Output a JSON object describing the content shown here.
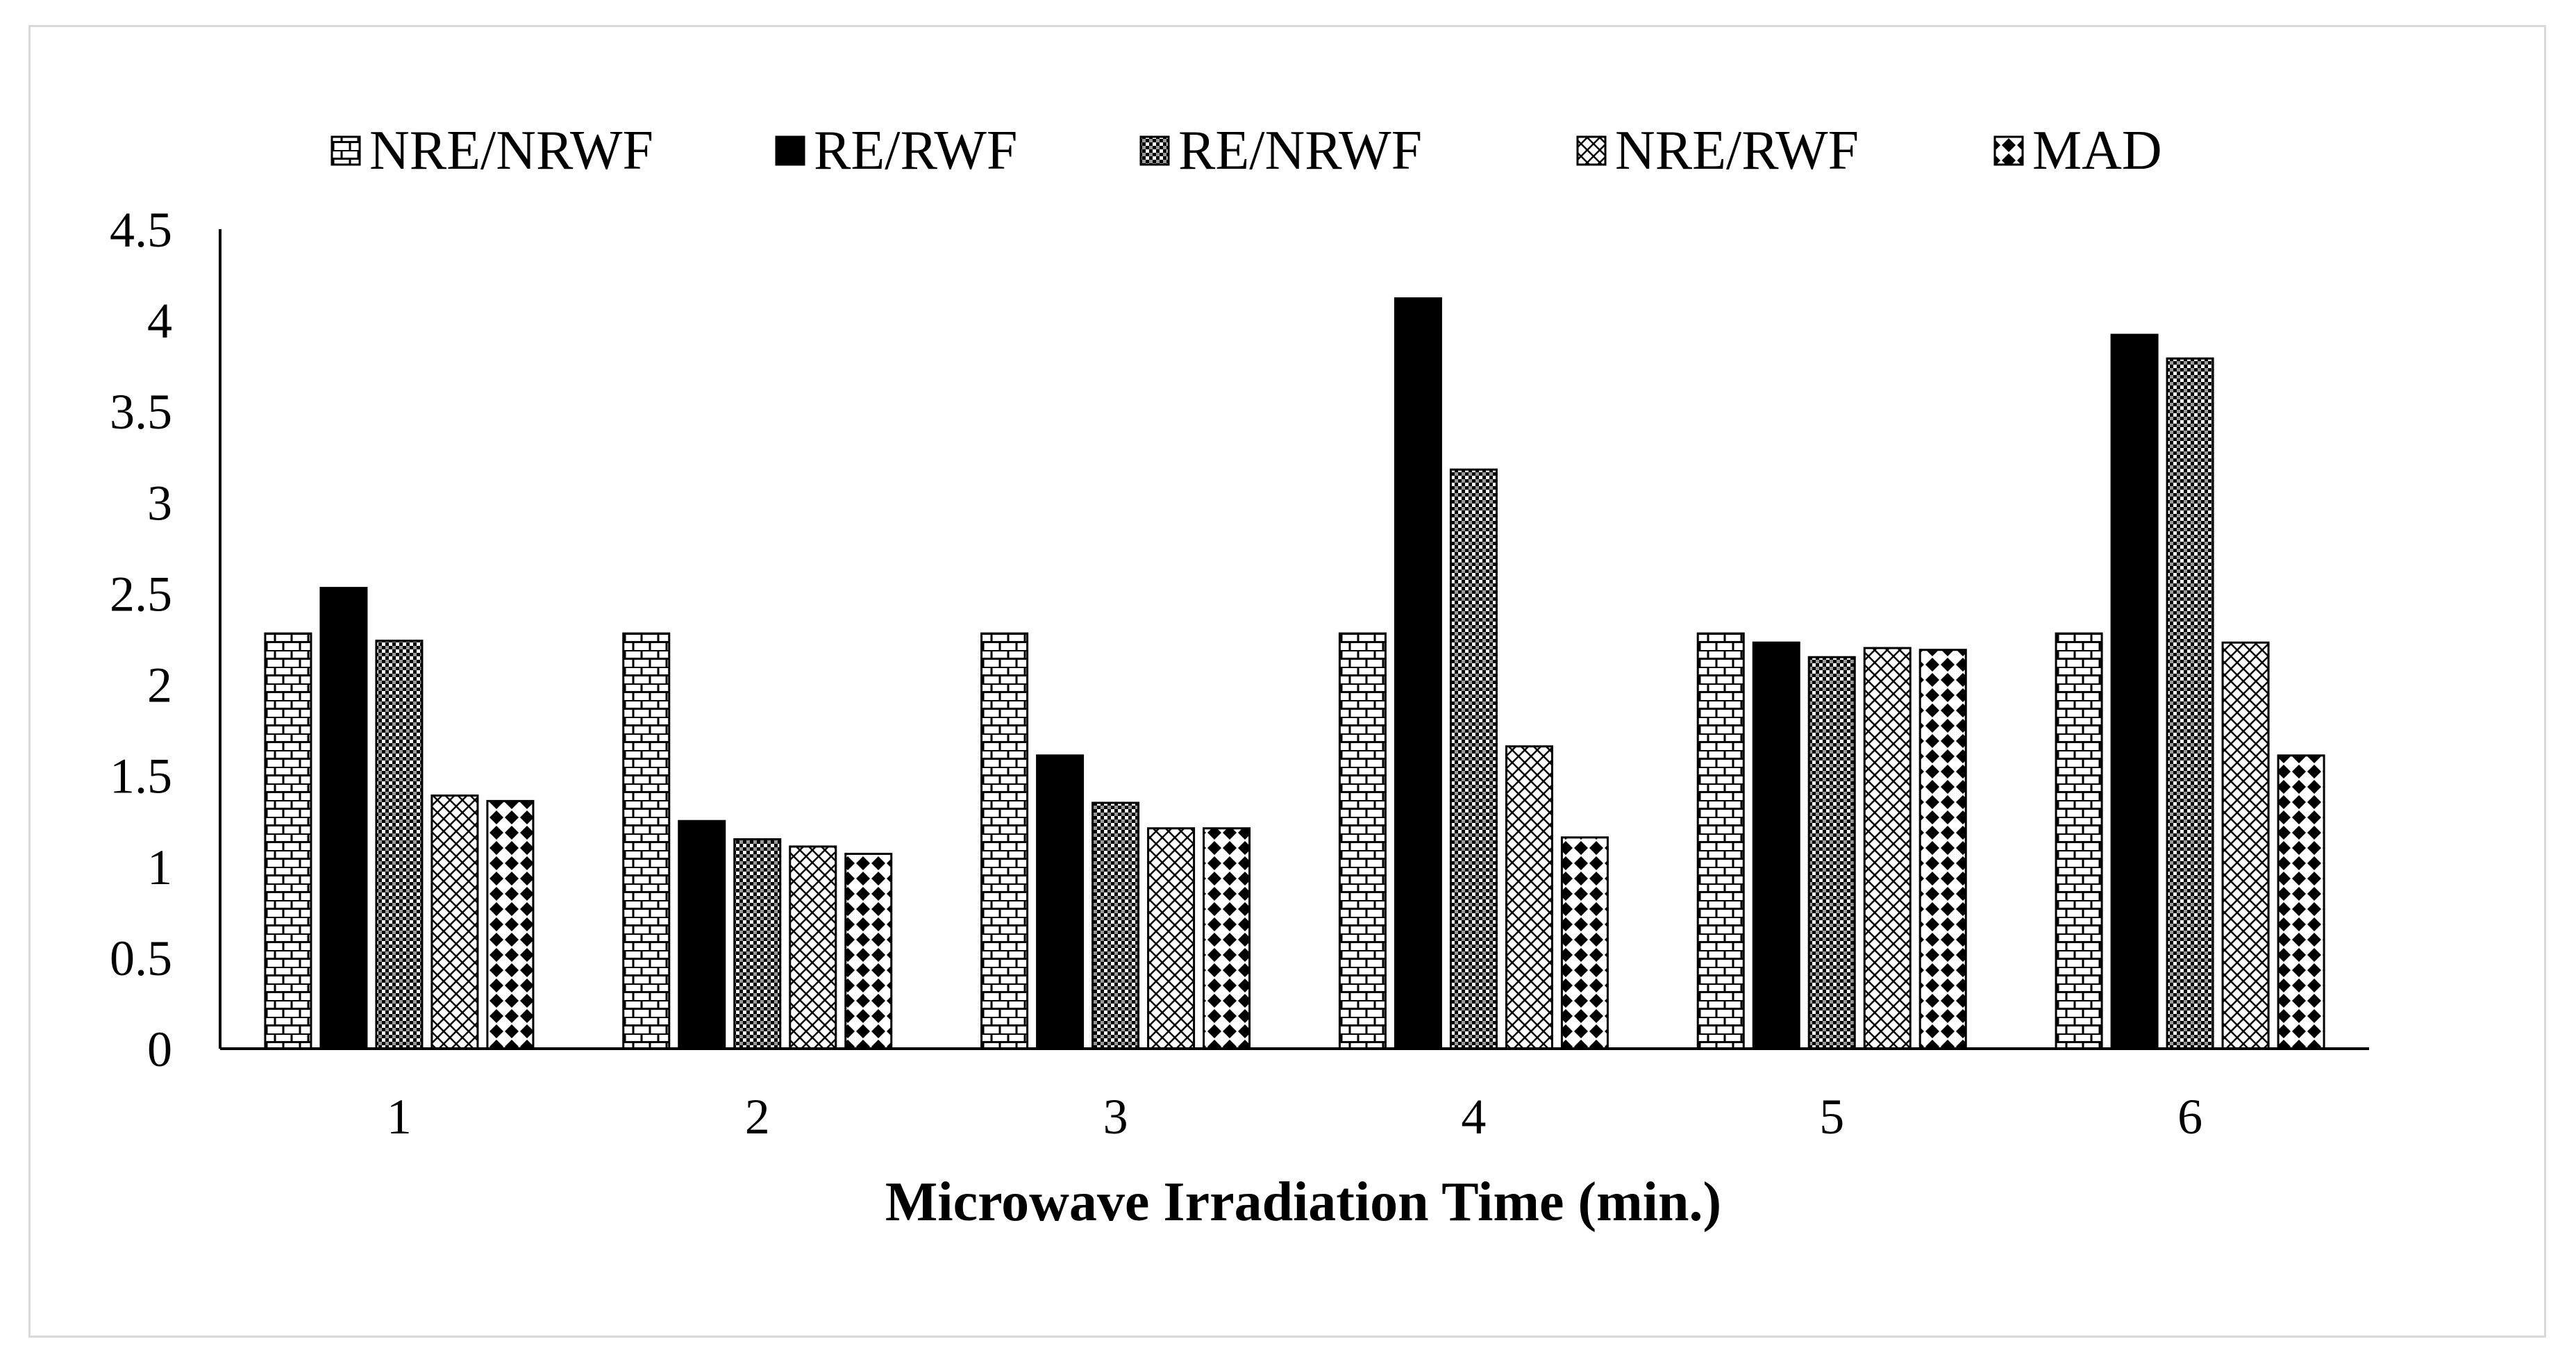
{
  "chart_data": {
    "type": "bar",
    "title": "",
    "xlabel": "Microwave Irradiation Time (min.)",
    "ylabel": "",
    "ylim": [
      0,
      4.5
    ],
    "yticks": [
      "0",
      "0.5",
      "1",
      "1.5",
      "2",
      "2.5",
      "3",
      "3.5",
      "4",
      "4.5"
    ],
    "categories": [
      "1",
      "2",
      "3",
      "4",
      "5",
      "6"
    ],
    "legend_position": "top",
    "series": [
      {
        "name": "NRE/NRWF",
        "pattern": "brick",
        "values": [
          2.28,
          2.28,
          2.28,
          2.28,
          2.28,
          2.28
        ]
      },
      {
        "name": "RE/RWF",
        "pattern": "solid",
        "values": [
          2.53,
          1.25,
          1.61,
          4.12,
          2.23,
          3.92
        ]
      },
      {
        "name": "RE/NRWF",
        "pattern": "dense-check",
        "values": [
          2.24,
          1.15,
          1.35,
          3.18,
          2.15,
          3.79
        ]
      },
      {
        "name": "NRE/RWF",
        "pattern": "diamond-hatch",
        "values": [
          1.39,
          1.11,
          1.21,
          1.66,
          2.2,
          2.23
        ]
      },
      {
        "name": "MAD",
        "pattern": "diamonds",
        "values": [
          1.36,
          1.07,
          1.21,
          1.16,
          2.19,
          1.61
        ]
      }
    ]
  }
}
